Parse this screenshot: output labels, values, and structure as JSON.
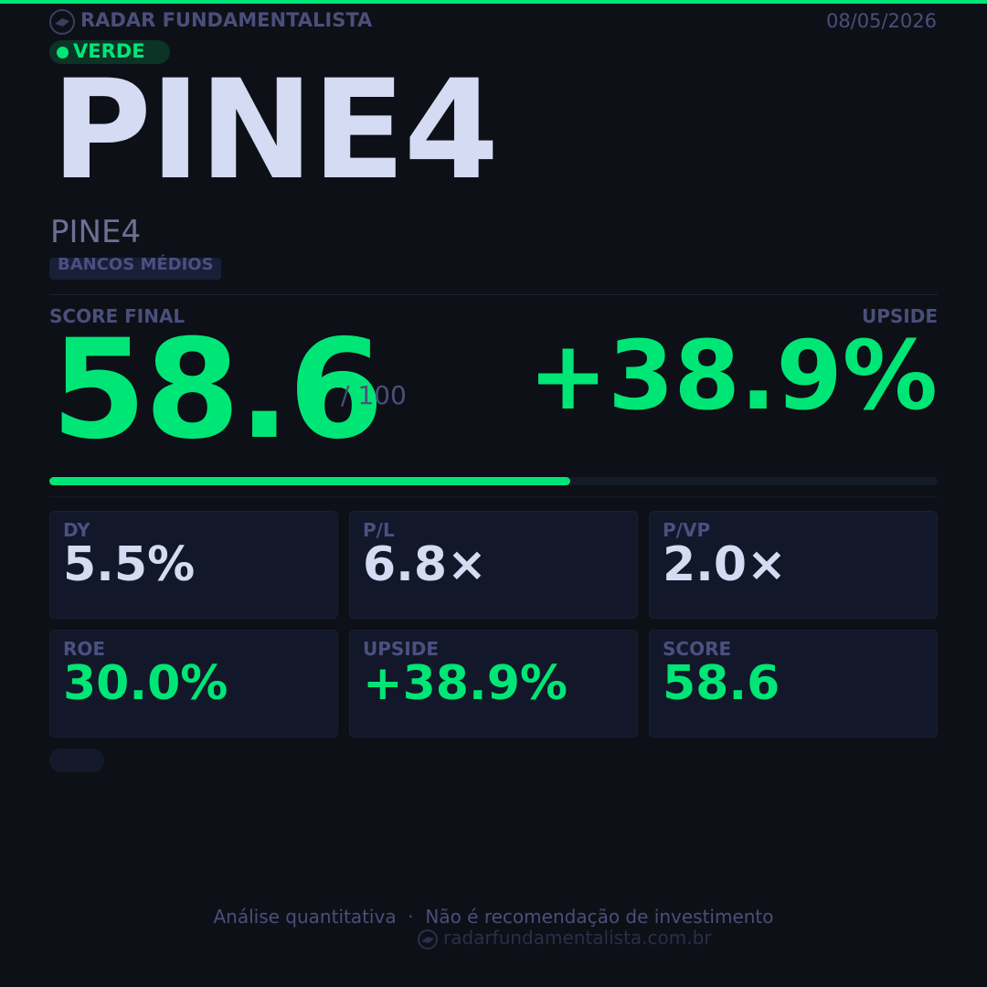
{
  "header": {
    "brand": "RADAR FUNDAMENTALISTA",
    "date": "08/05/2026"
  },
  "signal": "VERDE",
  "ticker": "PINE4",
  "name": "PINE4",
  "sector": "BANCOS MÉDIOS",
  "score": {
    "label": "SCORE FINAL",
    "value": 58.6,
    "max": {
      "value": 100,
      "label": "/ 100"
    },
    "color": "#00e676"
  },
  "upside": {
    "label": "UPSIDE",
    "value": "+38.9%"
  },
  "metrics": [
    {
      "label": "DY",
      "value": "5.5%",
      "color": "#d4dbf2"
    },
    {
      "label": "P/L",
      "value": "6.8×",
      "color": "#d4dbf2"
    },
    {
      "label": "P/VP",
      "value": "2.0×",
      "color": "#d4dbf2"
    },
    {
      "label": "ROE",
      "value": "30.0%",
      "color": "#00e676"
    },
    {
      "label": "UPSIDE",
      "value": "+38.9%",
      "color": "#00e676"
    },
    {
      "label": "SCORE",
      "value": "58.6",
      "color": "#00e676"
    }
  ],
  "footer": {
    "disclaimer": "Análise quantitativa  ·  Não é recomendação de investimento",
    "url": "radarfundamentalista.com.br"
  }
}
